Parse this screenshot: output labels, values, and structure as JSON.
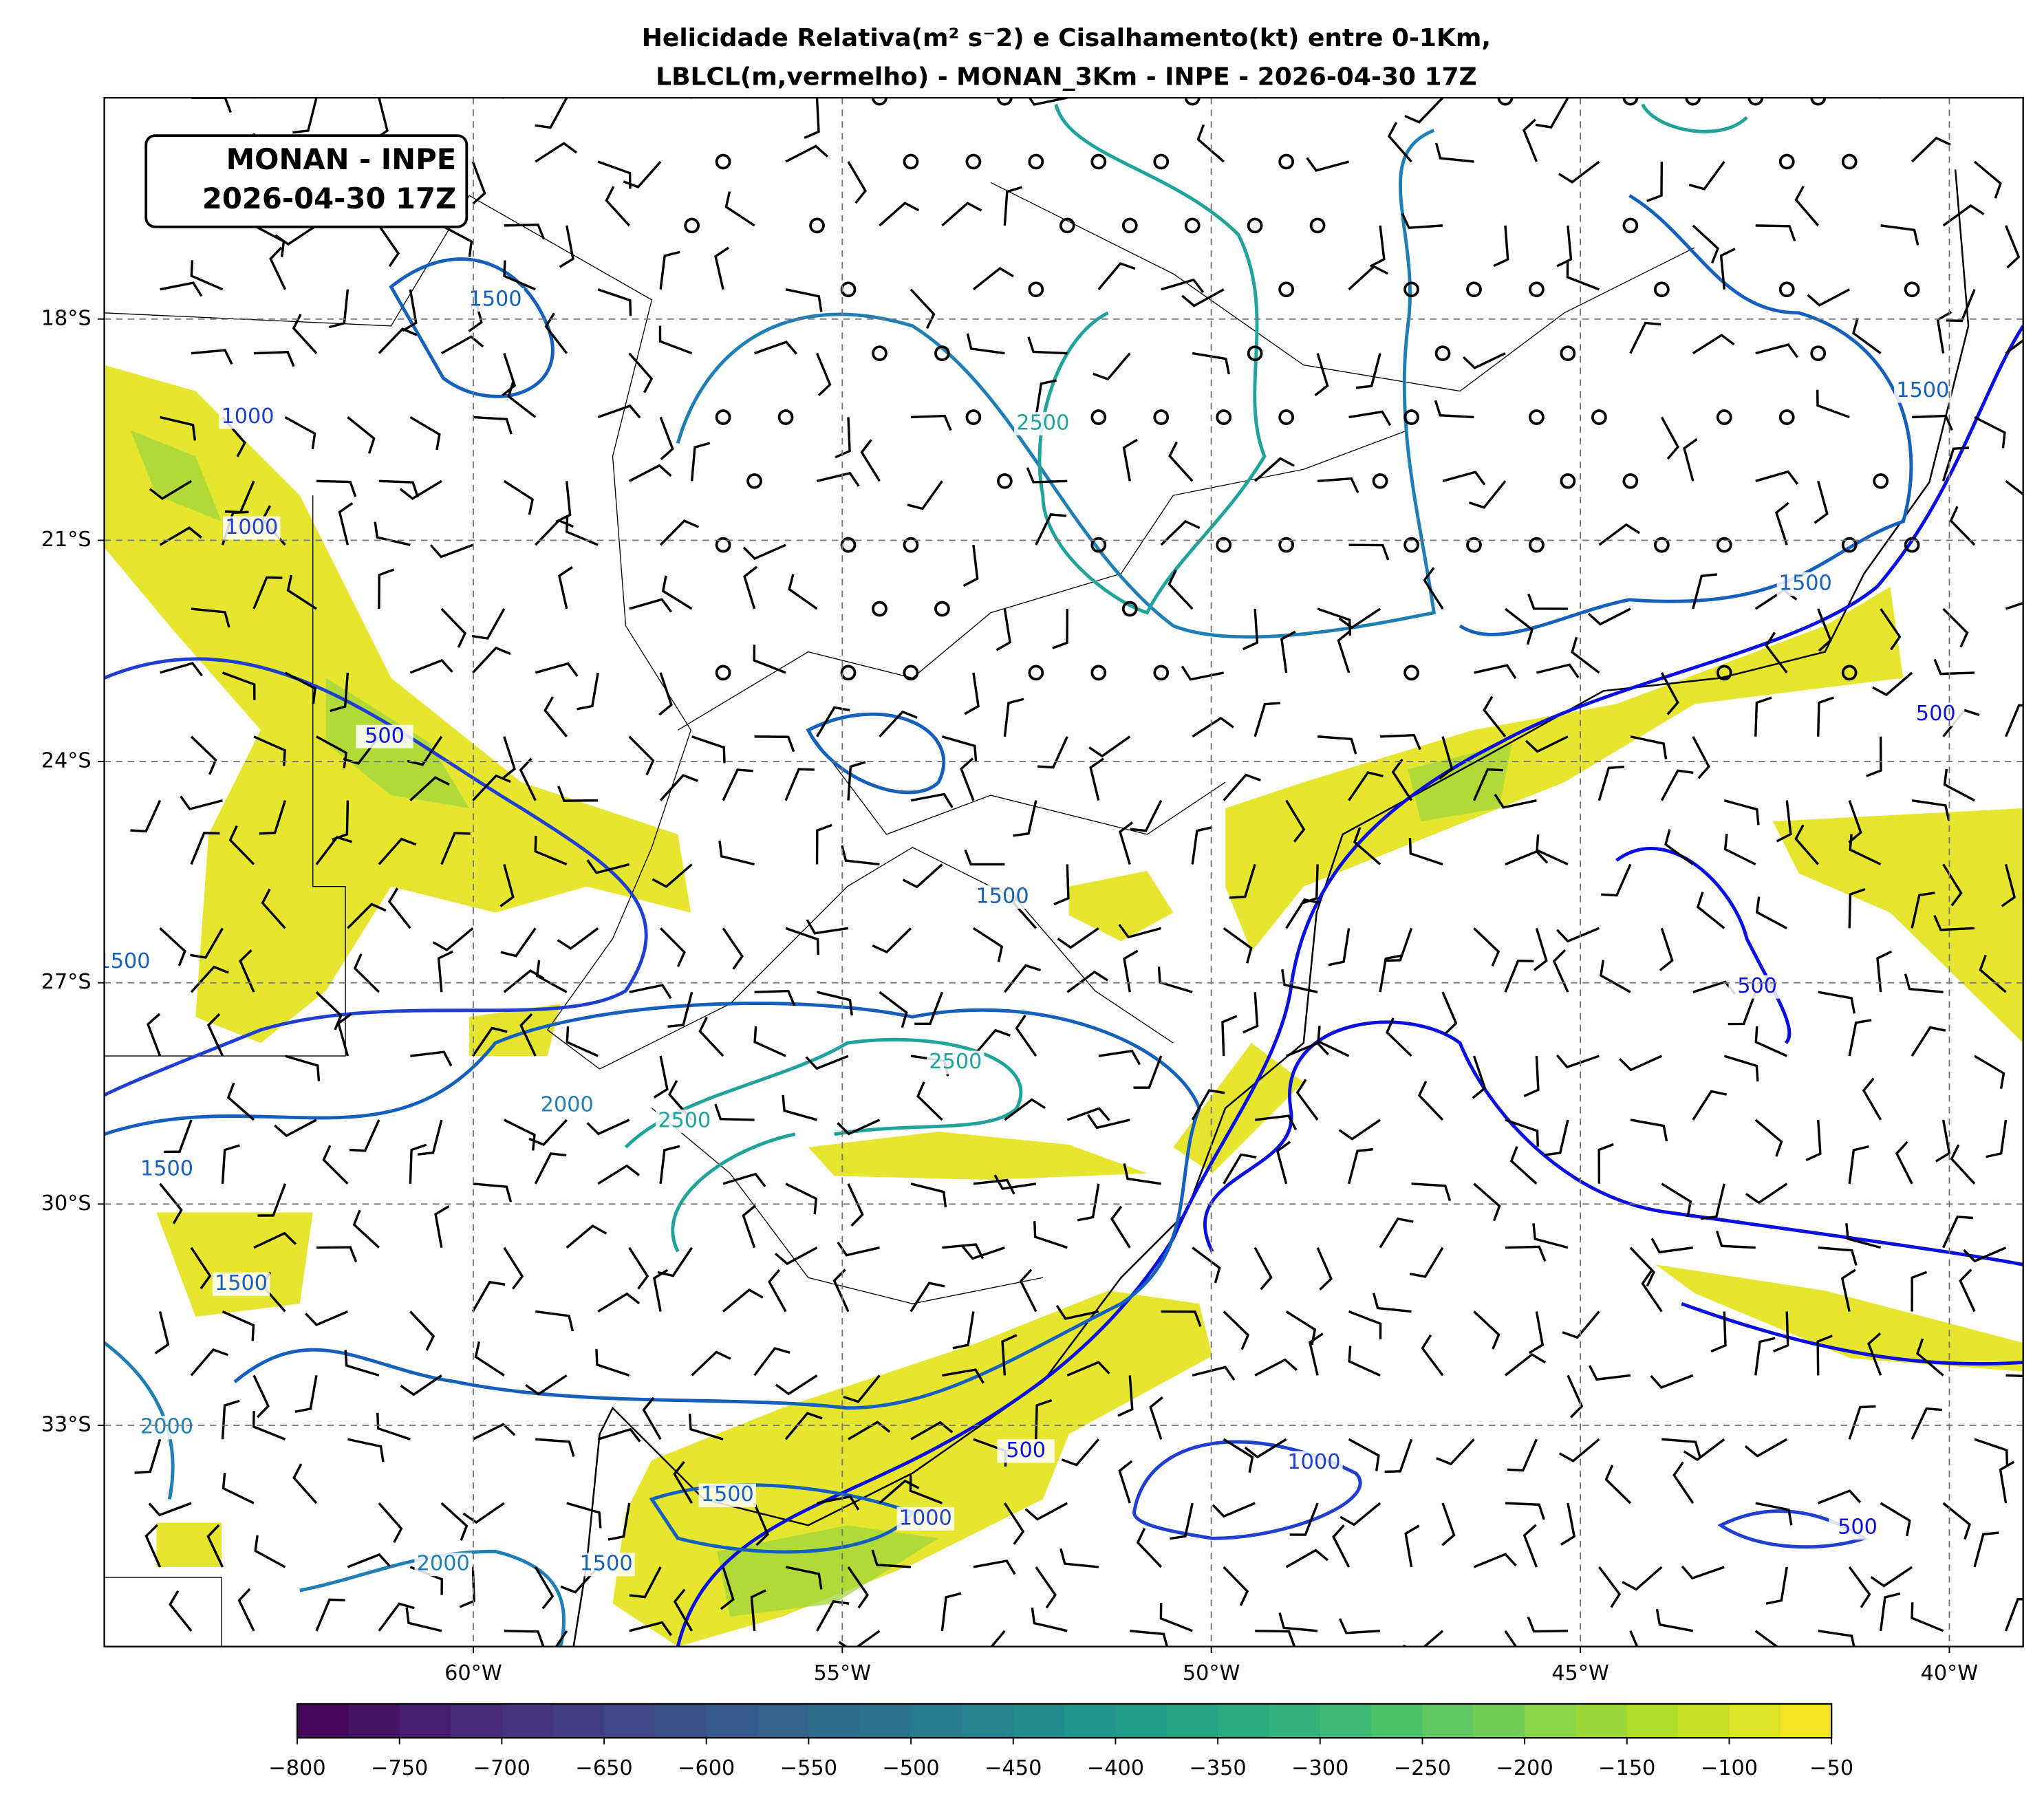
{
  "chart_data": {
    "type": "map",
    "title": [
      "Helicidade Relativa(m² s⁻2) e Cisalhamento(kt) entre 0-1Km,",
      "LBLCL(m,vermelho) - MONAN_3Km - INPE - 2026-04-30 17Z"
    ],
    "info_box": [
      "MONAN - INPE",
      "2026-04-30 17Z"
    ],
    "xlim": [
      -65,
      -39
    ],
    "ylim": [
      -36,
      -15
    ],
    "xticks": [
      {
        "value": -60,
        "label": "60°W"
      },
      {
        "value": -55,
        "label": "55°W"
      },
      {
        "value": -50,
        "label": "50°W"
      },
      {
        "value": -45,
        "label": "45°W"
      },
      {
        "value": -40,
        "label": "40°W"
      }
    ],
    "yticks": [
      {
        "value": -18,
        "label": "18°S"
      },
      {
        "value": -21,
        "label": "21°S"
      },
      {
        "value": -24,
        "label": "24°S"
      },
      {
        "value": -27,
        "label": "27°S"
      },
      {
        "value": -30,
        "label": "30°S"
      },
      {
        "value": -33,
        "label": "33°S"
      }
    ],
    "grid": true,
    "colorbar": {
      "lim": [
        -800,
        -50
      ],
      "colormap": [
        "#440154",
        "#482878",
        "#3e4989",
        "#31688e",
        "#26828e",
        "#1f9e89",
        "#35b779",
        "#6ece58",
        "#b5de2b",
        "#fde725"
      ],
      "ticks": [
        {
          "value": -800,
          "label": "−800"
        },
        {
          "value": -750,
          "label": "−750"
        },
        {
          "value": -700,
          "label": "−700"
        },
        {
          "value": -650,
          "label": "−650"
        },
        {
          "value": -600,
          "label": "−600"
        },
        {
          "value": -550,
          "label": "−550"
        },
        {
          "value": -500,
          "label": "−500"
        },
        {
          "value": -450,
          "label": "−450"
        },
        {
          "value": -400,
          "label": "−400"
        },
        {
          "value": -350,
          "label": "−350"
        },
        {
          "value": -300,
          "label": "−300"
        },
        {
          "value": -250,
          "label": "−250"
        },
        {
          "value": -200,
          "label": "−200"
        },
        {
          "value": -150,
          "label": "−150"
        },
        {
          "value": -100,
          "label": "−100"
        },
        {
          "value": -50,
          "label": "−50"
        }
      ]
    },
    "contour_labels": [
      1500,
      1000,
      1000,
      500,
      2500,
      1500,
      1500,
      500,
      1500,
      500,
      2500,
      2500,
      2000,
      1500,
      1500,
      1500,
      2000,
      1500,
      500,
      1000,
      500,
      2000,
      1000,
      1500
    ]
  }
}
